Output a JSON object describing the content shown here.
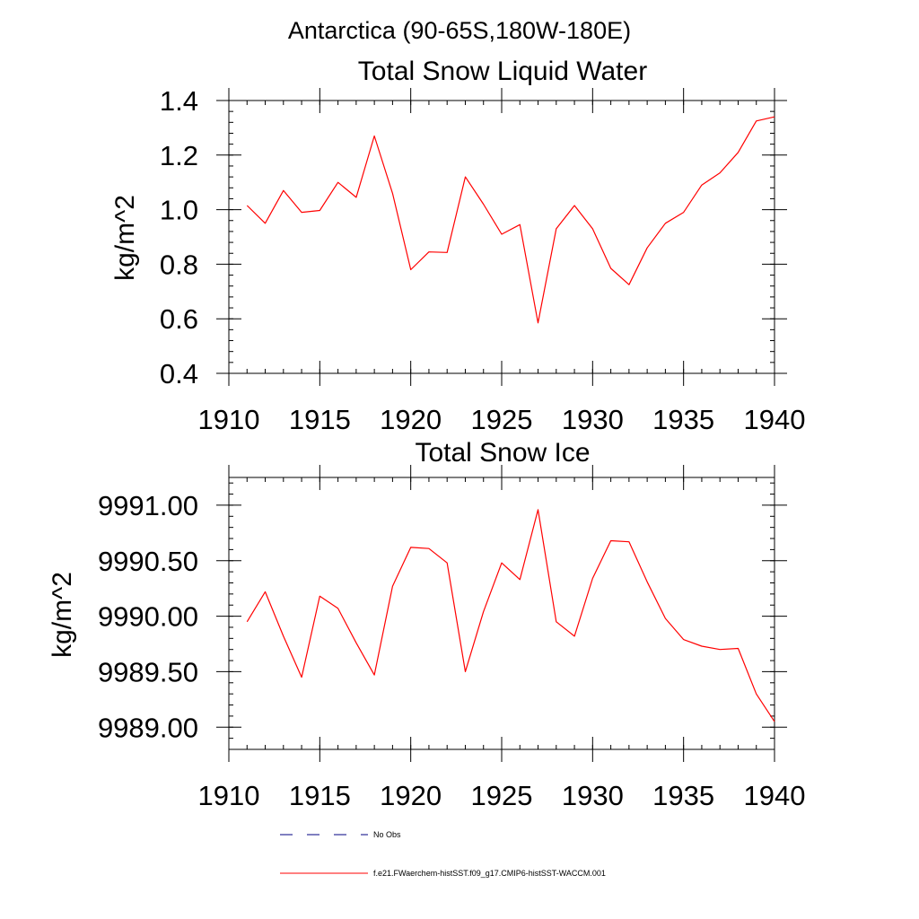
{
  "figure": {
    "suptitle": "Antarctica (90-65S,180W-180E)",
    "line_color": "#ff0000",
    "obs_line_color": "#000080"
  },
  "legend": {
    "placement": "bottom",
    "entries": [
      {
        "label": "No Obs",
        "style": "dashed",
        "color": "#000080"
      },
      {
        "label": "f.e21.FWaerchem-histSST.f09_g17.CMIP6-histSST-WACCM.001",
        "style": "solid",
        "color": "#ff0000"
      }
    ]
  },
  "chart_data": [
    {
      "type": "line",
      "title": "Total Snow Liquid Water",
      "xlabel": "",
      "ylabel": "kg/m^2",
      "xlim": [
        1910,
        1940
      ],
      "ylim": [
        0.4,
        1.4
      ],
      "x_ticks": [
        "1910",
        "1915",
        "1920",
        "1925",
        "1930",
        "1935",
        "1940"
      ],
      "y_ticks": [
        "0.4",
        "0.6",
        "0.8",
        "1.0",
        "1.2",
        "1.4"
      ],
      "grid": false,
      "series": [
        {
          "name": "f.e21.FWaerchem-histSST.f09_g17.CMIP6-histSST-WACCM.001",
          "x": [
            1911,
            1912,
            1913,
            1914,
            1915,
            1916,
            1917,
            1918,
            1919,
            1920,
            1921,
            1922,
            1923,
            1924,
            1925,
            1926,
            1927,
            1928,
            1929,
            1930,
            1931,
            1932,
            1933,
            1934,
            1935,
            1936,
            1937,
            1938,
            1939,
            1940
          ],
          "y": [
            1.015,
            0.95,
            1.07,
            0.99,
            0.997,
            1.1,
            1.045,
            1.27,
            1.06,
            0.78,
            0.845,
            0.843,
            1.12,
            1.02,
            0.91,
            0.945,
            0.585,
            0.93,
            1.015,
            0.93,
            0.785,
            0.725,
            0.86,
            0.95,
            0.99,
            1.09,
            1.135,
            1.21,
            1.325,
            1.34
          ]
        }
      ]
    },
    {
      "type": "line",
      "title": "Total Snow Ice",
      "xlabel": "",
      "ylabel": "kg/m^2",
      "xlim": [
        1910,
        1940
      ],
      "ylim": [
        9988.8,
        9991.25
      ],
      "x_ticks": [
        "1910",
        "1915",
        "1920",
        "1925",
        "1930",
        "1935",
        "1940"
      ],
      "y_ticks": [
        "9989.00",
        "9989.50",
        "9990.00",
        "9990.50",
        "9991.00"
      ],
      "grid": false,
      "series": [
        {
          "name": "f.e21.FWaerchem-histSST.f09_g17.CMIP6-histSST-WACCM.001",
          "x": [
            1911,
            1912,
            1913,
            1914,
            1915,
            1916,
            1917,
            1918,
            1919,
            1920,
            1921,
            1922,
            1923,
            1924,
            1925,
            1926,
            1927,
            1928,
            1929,
            1930,
            1931,
            1932,
            1933,
            1934,
            1935,
            1936,
            1937,
            1938,
            1939,
            1940
          ],
          "y": [
            9989.95,
            9990.22,
            9989.82,
            9989.45,
            9990.18,
            9990.07,
            9989.76,
            9989.47,
            9990.27,
            9990.62,
            9990.61,
            9990.48,
            9989.5,
            9990.04,
            9990.48,
            9990.33,
            9990.96,
            9989.95,
            9989.82,
            9990.34,
            9990.68,
            9990.67,
            9990.31,
            9989.98,
            9989.79,
            9989.73,
            9989.7,
            9989.71,
            9989.3,
            9989.05
          ]
        }
      ]
    }
  ]
}
